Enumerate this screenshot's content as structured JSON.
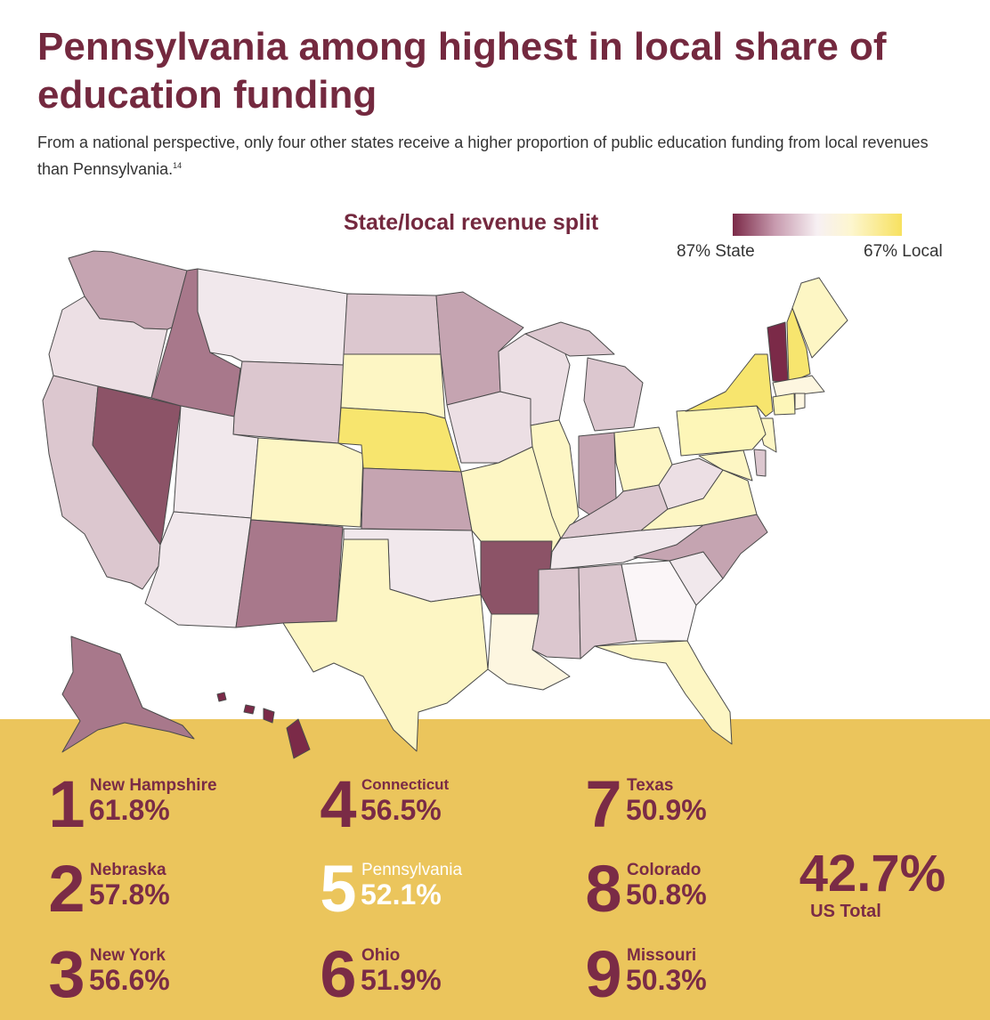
{
  "title": "Pennsylvania among highest in local share of education funding",
  "subtitle": "From a national perspective, only four other states receive a higher proportion of public education funding from local revenues than Pennsylvania.",
  "footnote": "14",
  "legend": {
    "title": "State/local revenue split",
    "low_label": "87% State",
    "high_label": "67% Local"
  },
  "colors": {
    "maroon": "#74293f",
    "band": "#ebc55c",
    "state_dark": "#7b2a48",
    "local_bright": "#f7e15f"
  },
  "rankings": [
    {
      "rank": "1",
      "state": "New Hampshire",
      "value": "61.8%"
    },
    {
      "rank": "2",
      "state": "Nebraska",
      "value": "57.8%"
    },
    {
      "rank": "3",
      "state": "New York",
      "value": "56.6%"
    },
    {
      "rank": "4",
      "state": "Connecticut",
      "value": "56.5%"
    },
    {
      "rank": "5",
      "state": "Pennsylvania",
      "value": "52.1%"
    },
    {
      "rank": "6",
      "state": "Ohio",
      "value": "51.9%"
    },
    {
      "rank": "7",
      "state": "Texas",
      "value": "50.9%"
    },
    {
      "rank": "8",
      "state": "Colorado",
      "value": "50.8%"
    },
    {
      "rank": "9",
      "state": "Missouri",
      "value": "50.3%"
    }
  ],
  "total": {
    "value": "42.7%",
    "label": "US Total"
  }
}
